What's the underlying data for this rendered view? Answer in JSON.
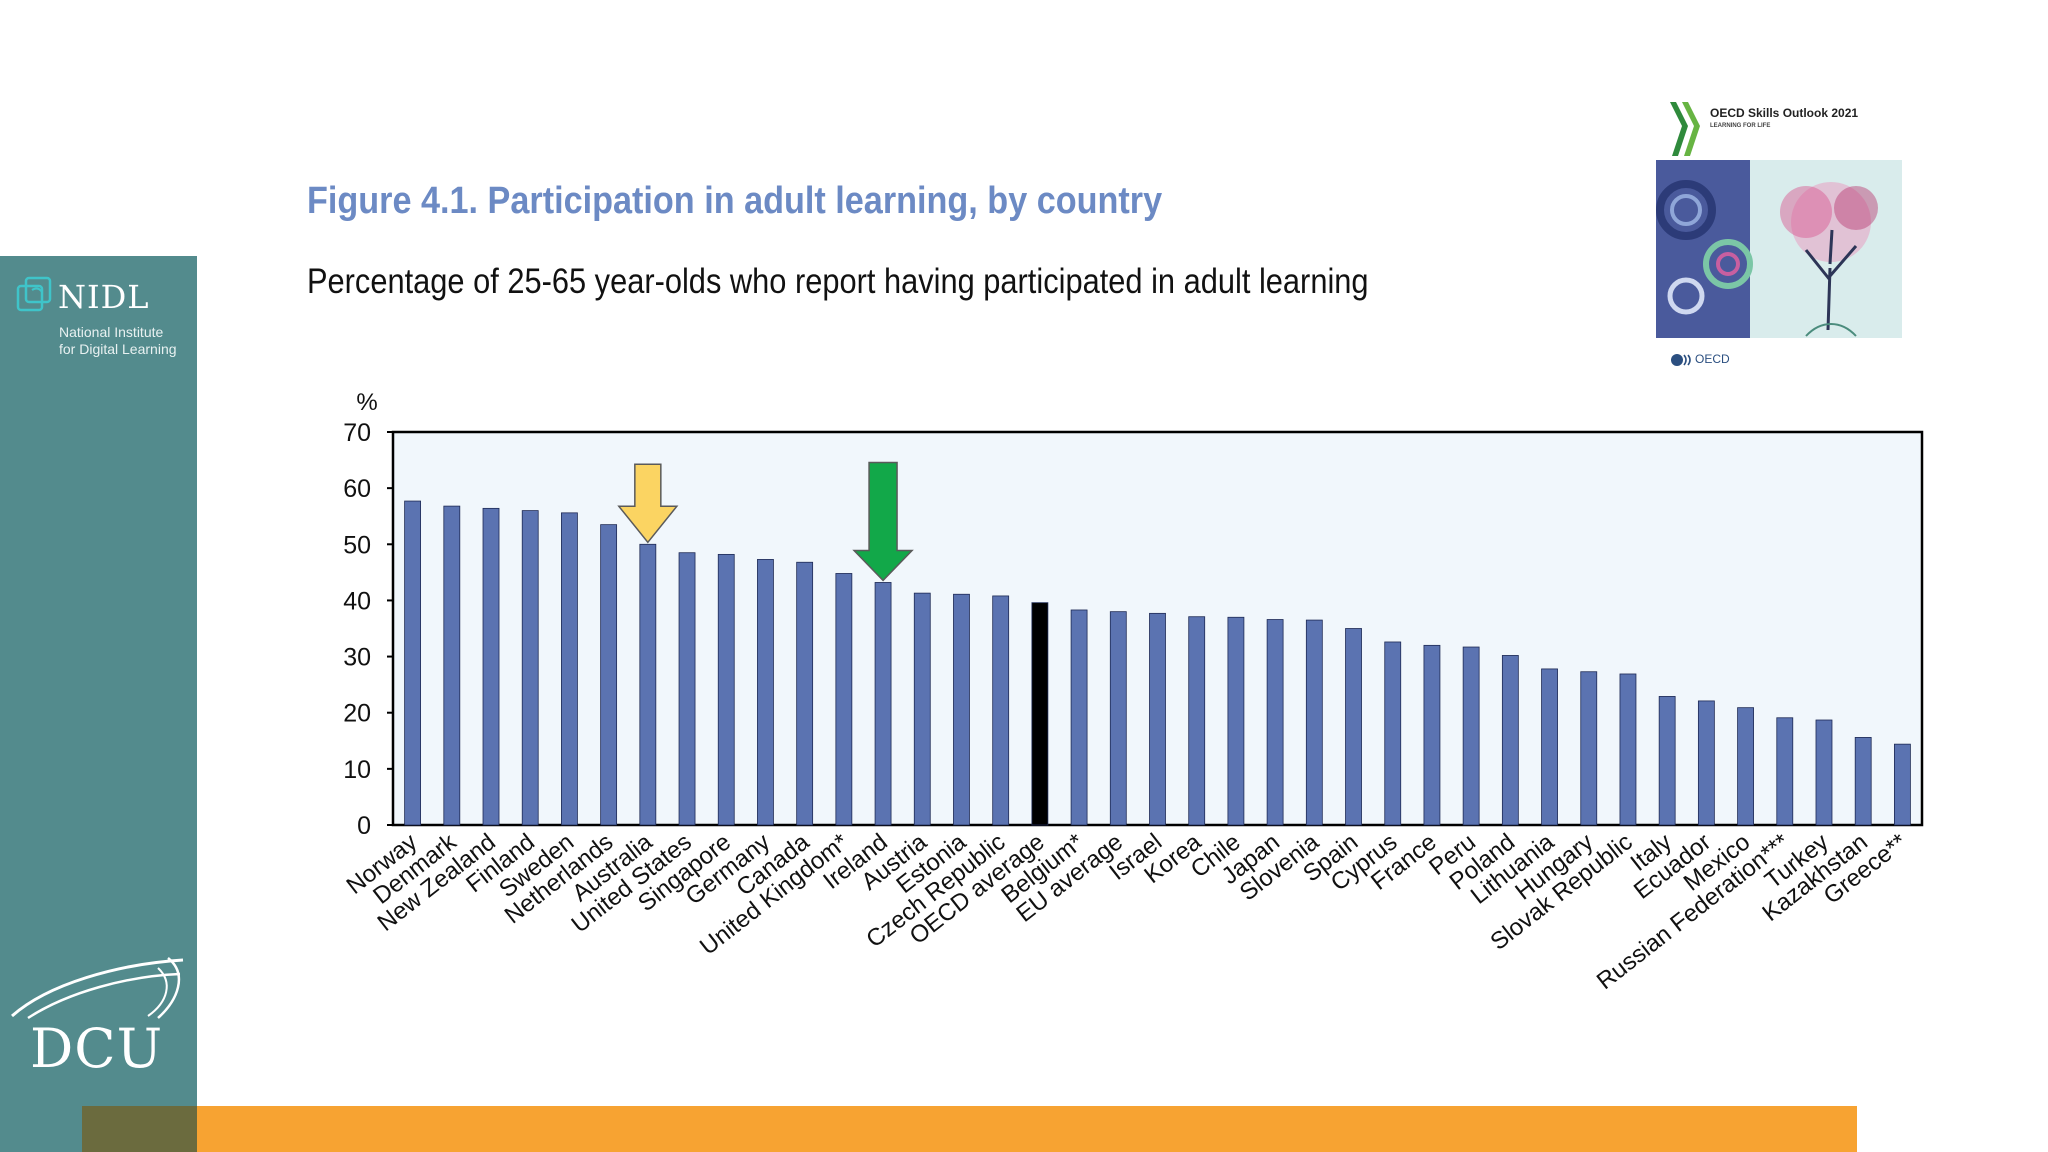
{
  "slide": {
    "title": "Figure 4.1. Participation in adult learning, by country",
    "subtitle": "Percentage of 25-65 year-olds who report having participated in adult learning"
  },
  "sidebar": {
    "nidl_name": "NIDL",
    "nidl_line1": "National Institute",
    "nidl_line2": "for Digital Learning",
    "university": "DCU"
  },
  "cover": {
    "title": "OECD Skills Outlook 2021",
    "tagline": "LEARNING FOR LIFE",
    "publisher": "OECD"
  },
  "colors": {
    "bar": "#5b73b1",
    "highlight_bar": "#000000",
    "yellow_arrow": "#fbd462",
    "green_arrow": "#12a849",
    "plot_background": "#f1f7fc",
    "title": "#6c8ac4",
    "sidebar": "#538b8d",
    "bottom_bar": "#f7a332"
  },
  "chart_data": {
    "type": "bar",
    "ylabel": "%",
    "ylim": [
      0,
      70
    ],
    "yticks": [
      0,
      10,
      20,
      30,
      40,
      50,
      60,
      70
    ],
    "grid": false,
    "categories": [
      "Norway",
      "Denmark",
      "New Zealand",
      "Finland",
      "Sweden",
      "Netherlands",
      "Australia",
      "United States",
      "Singapore",
      "Germany",
      "Canada",
      "United Kingdom*",
      "Ireland",
      "Austria",
      "Estonia",
      "Czech Republic",
      "OECD average",
      "Belgium*",
      "EU average",
      "Israel",
      "Korea",
      "Chile",
      "Japan",
      "Slovenia",
      "Spain",
      "Cyprus",
      "France",
      "Peru",
      "Poland",
      "Lithuania",
      "Hungary",
      "Slovak Republic",
      "Italy",
      "Ecuador",
      "Mexico",
      "Russian Federation***",
      "Turkey",
      "Kazakhstan",
      "Greece**"
    ],
    "values": [
      57.7,
      56.8,
      56.4,
      56.0,
      55.6,
      53.5,
      50.0,
      48.5,
      48.2,
      47.3,
      46.8,
      44.8,
      43.2,
      41.3,
      41.1,
      40.8,
      39.6,
      38.3,
      38.0,
      37.7,
      37.1,
      37.0,
      36.6,
      36.5,
      35.0,
      32.6,
      32.0,
      31.7,
      30.2,
      27.8,
      27.3,
      26.9,
      22.9,
      22.1,
      20.9,
      19.1,
      18.7,
      15.6,
      14.4
    ],
    "highlighted": [
      "OECD average"
    ],
    "annotations": [
      {
        "type": "arrow",
        "color": "yellow",
        "points_to": "Australia"
      },
      {
        "type": "arrow",
        "color": "green",
        "points_to": "Ireland"
      }
    ]
  }
}
